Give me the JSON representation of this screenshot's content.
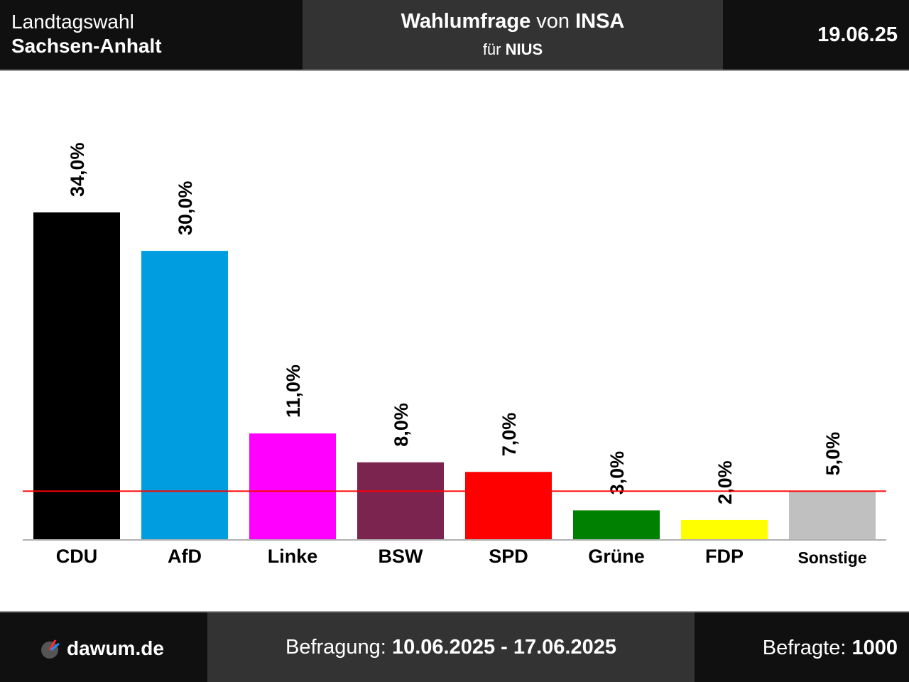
{
  "header": {
    "region_label": "Landtagswahl",
    "region_name": "Sachsen-Anhalt",
    "title_bold": "Wahlumfrage",
    "title_mid": "von",
    "institute": "INSA",
    "client_prefix": "für",
    "client": "NIUS",
    "date": "19.06.25"
  },
  "footer": {
    "logo_text": "dawum.de",
    "logo_icon": "dawum-logo-icon",
    "survey_label": "Befragung:",
    "survey_period": "10.06.2025 - 17.06.2025",
    "respondents_label": "Befragte:",
    "respondents_count": "1000"
  },
  "chart_data": {
    "type": "bar",
    "categories": [
      "CDU",
      "AfD",
      "Linke",
      "BSW",
      "SPD",
      "Grüne",
      "FDP",
      "Sonstige"
    ],
    "values": [
      34.0,
      30.0,
      11.0,
      8.0,
      7.0,
      3.0,
      2.0,
      5.0
    ],
    "value_labels": [
      "34,0%",
      "30,0%",
      "11,0%",
      "8,0%",
      "7,0%",
      "3,0%",
      "2,0%",
      "5,0%"
    ],
    "colors": [
      "#000000",
      "#009ee0",
      "#ff00ff",
      "#7b2450",
      "#ff0000",
      "#008000",
      "#ffff00",
      "#c0c0c0"
    ],
    "threshold": 5.0,
    "threshold_color": "#ff0000",
    "ylim": [
      0,
      34
    ]
  }
}
